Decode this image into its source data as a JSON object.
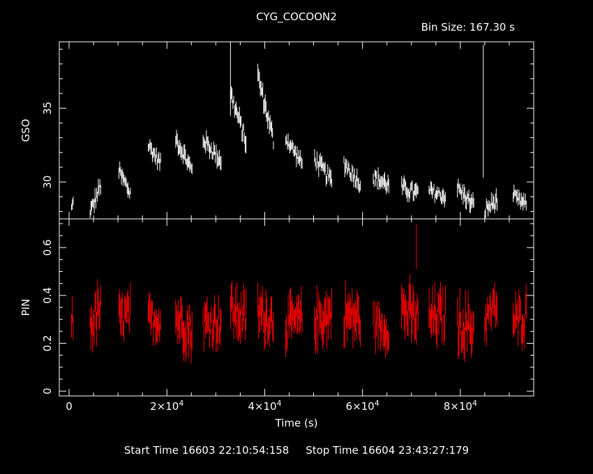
{
  "title": "CYG_COCOON2",
  "bin_size_label": "Bin Size:  167.30  s",
  "footer": {
    "start_label": "Start Time 16603 22:10:54:158",
    "stop_label": "Stop Time 16604 23:43:27:179"
  },
  "colors": {
    "gso": "#ffffff",
    "pin": "#ff0000",
    "axes": "#ffffff",
    "background": "#000000"
  },
  "chart_data": [
    {
      "type": "scatter",
      "panel": "top",
      "ylabel": "GSO",
      "xlim": [
        -2000,
        95000
      ],
      "ylim": [
        27.5,
        39.5
      ],
      "yticks": [
        {
          "v": 30,
          "label": "30"
        },
        {
          "v": 35,
          "label": "35"
        }
      ],
      "series": [
        {
          "color": "#ffffff",
          "segments": [
            {
              "t0": 500,
              "t1": 1000,
              "v0": 28.2,
              "v1": 28.8,
              "noise": 0.6
            },
            {
              "t0": 4300,
              "t1": 6500,
              "v0": 27.9,
              "v1": 29.8,
              "noise": 0.9
            },
            {
              "t0": 10200,
              "t1": 12600,
              "v0": 30.7,
              "v1": 29.2,
              "noise": 0.9
            },
            {
              "t0": 16200,
              "t1": 18800,
              "v0": 32.5,
              "v1": 31.2,
              "noise": 0.8
            },
            {
              "t0": 21800,
              "t1": 25200,
              "v0": 33.0,
              "v1": 30.7,
              "noise": 0.9
            },
            {
              "t0": 27400,
              "t1": 31200,
              "v0": 32.9,
              "v1": 31.4,
              "noise": 0.9
            },
            {
              "t0": 33000,
              "t1": 36300,
              "v0": 36.0,
              "v1": 32.6,
              "noise": 1.0
            },
            {
              "t0": 38600,
              "t1": 41800,
              "v0": 37.2,
              "v1": 32.8,
              "noise": 1.0
            },
            {
              "t0": 44300,
              "t1": 47700,
              "v0": 33.0,
              "v1": 31.2,
              "noise": 0.8
            },
            {
              "t0": 50200,
              "t1": 53800,
              "v0": 31.6,
              "v1": 30.0,
              "noise": 0.9
            },
            {
              "t0": 56200,
              "t1": 59600,
              "v0": 31.3,
              "v1": 29.9,
              "noise": 0.9
            },
            {
              "t0": 62200,
              "t1": 65500,
              "v0": 30.3,
              "v1": 29.8,
              "noise": 0.9
            },
            {
              "t0": 68000,
              "t1": 71500,
              "v0": 29.6,
              "v1": 29.2,
              "noise": 0.9
            },
            {
              "t0": 73600,
              "t1": 77100,
              "v0": 29.4,
              "v1": 29.0,
              "noise": 0.8
            },
            {
              "t0": 79400,
              "t1": 82900,
              "v0": 29.6,
              "v1": 28.3,
              "noise": 0.9
            },
            {
              "t0": 85000,
              "t1": 87600,
              "v0": 28.1,
              "v1": 28.8,
              "noise": 0.9
            },
            {
              "t0": 90800,
              "t1": 93600,
              "v0": 29.0,
              "v1": 28.4,
              "noise": 0.8
            }
          ],
          "spikes": [
            {
              "x": 33000,
              "y0": 34.5,
              "y1": 39.5
            },
            {
              "x": 84700,
              "y0": 30.3,
              "y1": 39.3
            }
          ]
        }
      ]
    },
    {
      "type": "scatter",
      "panel": "bottom",
      "ylabel": "PIN",
      "xlabel": "Time (s)",
      "xlim": [
        -2000,
        95000
      ],
      "ylim": [
        -0.02,
        0.72
      ],
      "yticks": [
        {
          "v": 0,
          "label": "0"
        },
        {
          "v": 0.2,
          "label": "0.2"
        },
        {
          "v": 0.4,
          "label": "0.4"
        },
        {
          "v": 0.6,
          "label": "0.6"
        }
      ],
      "xticks": [
        {
          "v": 0,
          "label": "0"
        },
        {
          "v": 20000,
          "base": "2×10",
          "exp": "4"
        },
        {
          "v": 40000,
          "base": "4×10",
          "exp": "4"
        },
        {
          "v": 60000,
          "base": "6×10",
          "exp": "4"
        },
        {
          "v": 80000,
          "base": "8×10",
          "exp": "4"
        }
      ],
      "series": [
        {
          "color": "#ff0000",
          "segments": [
            {
              "t0": 500,
              "t1": 1000,
              "v0": 0.31,
              "v1": 0.28,
              "noise": 0.1
            },
            {
              "t0": 4300,
              "t1": 6500,
              "v0": 0.27,
              "v1": 0.35,
              "noise": 0.15
            },
            {
              "t0": 10200,
              "t1": 12600,
              "v0": 0.3,
              "v1": 0.32,
              "noise": 0.14
            },
            {
              "t0": 16200,
              "t1": 18800,
              "v0": 0.3,
              "v1": 0.3,
              "noise": 0.12
            },
            {
              "t0": 21800,
              "t1": 25200,
              "v0": 0.31,
              "v1": 0.25,
              "noise": 0.15
            },
            {
              "t0": 27400,
              "t1": 31200,
              "v0": 0.28,
              "v1": 0.3,
              "noise": 0.14
            },
            {
              "t0": 33000,
              "t1": 36300,
              "v0": 0.34,
              "v1": 0.3,
              "noise": 0.15
            },
            {
              "t0": 38600,
              "t1": 41800,
              "v0": 0.33,
              "v1": 0.3,
              "noise": 0.15
            },
            {
              "t0": 44300,
              "t1": 47700,
              "v0": 0.28,
              "v1": 0.3,
              "noise": 0.14
            },
            {
              "t0": 50200,
              "t1": 53800,
              "v0": 0.3,
              "v1": 0.32,
              "noise": 0.15
            },
            {
              "t0": 56200,
              "t1": 59600,
              "v0": 0.32,
              "v1": 0.3,
              "noise": 0.15
            },
            {
              "t0": 62200,
              "t1": 65500,
              "v0": 0.28,
              "v1": 0.26,
              "noise": 0.12
            },
            {
              "t0": 68000,
              "t1": 71500,
              "v0": 0.34,
              "v1": 0.3,
              "noise": 0.16
            },
            {
              "t0": 73600,
              "t1": 77100,
              "v0": 0.3,
              "v1": 0.32,
              "noise": 0.15
            },
            {
              "t0": 79400,
              "t1": 82900,
              "v0": 0.28,
              "v1": 0.26,
              "noise": 0.16
            },
            {
              "t0": 85000,
              "t1": 87600,
              "v0": 0.3,
              "v1": 0.36,
              "noise": 0.12
            },
            {
              "t0": 90800,
              "t1": 93600,
              "v0": 0.28,
              "v1": 0.32,
              "noise": 0.14
            }
          ],
          "spikes": [
            {
              "x": 71000,
              "y0": 0.51,
              "y1": 0.7
            }
          ]
        }
      ]
    }
  ]
}
